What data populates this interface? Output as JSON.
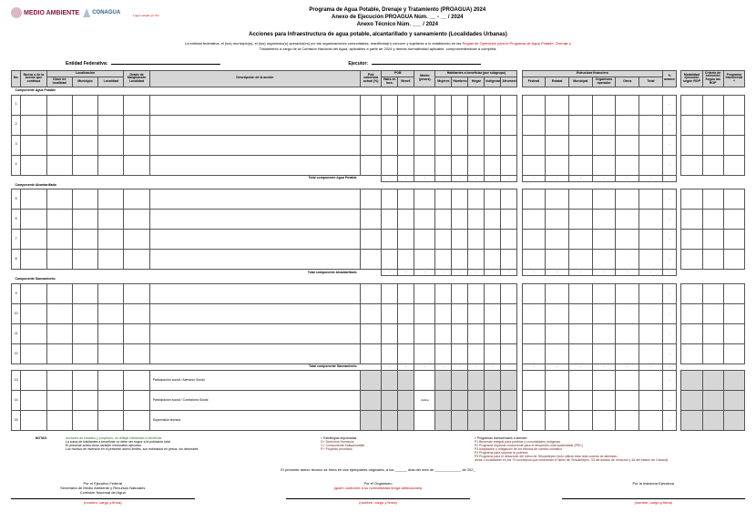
{
  "header": {
    "logo_ma": "MEDIO AMBIENTE",
    "logo_conagua": "CONAGUA",
    "logo_note": "Logos estado y/o OO",
    "title1": "Programa de Agua Potable, Drenaje y Tratamiento (PROAGUA) 2024",
    "title2": "Anexo de Ejecución PROAGUA Núm. __ - __ / 2024",
    "title3": "Anexo Técnico Núm. ___ / 2024",
    "subtitle": "Acciones para Infraestructura de agua potable, alcantarillado y saneamiento (Localidades Urbanas)",
    "legal_pre": "La entidad federativa, el (los) municipio(s), el (los) organismo(s) operador(es) y/o las organizaciones comunitarias, manifiesta(n) conocer y sujetarse a lo establecido en las ",
    "legal_red": "Reglas de Operación para el Programa de Agua Potable, Drenaje y",
    "legal_post": "Tratamiento a cargo de la Comisión Nacional del Agua, aplicables a partir de 2024 y demás normatividad aplicable, comprometiéndose a cumplirla."
  },
  "form": {
    "entidad_label": "Entidad Federativa:",
    "ejecutor_label": "Ejecutor:"
  },
  "table_headers": {
    "no": "No.",
    "nueva": "Nueva o de la acción que continua",
    "localizacion": "Localización",
    "clave_loc": "Clave de localidad",
    "municipio": "Municipio",
    "localidad": "Localidad",
    "grado": "Grado de Marginación Localidad",
    "descripcion": "Descripción de la acción",
    "pob_cobertura": "Pob cobertura actual (%)",
    "pob_group": "POB",
    "habs": "Habs en locs.",
    "benef": "Benef.",
    "monto": "Monto (pesos)",
    "habitantes": "Habitantes a beneficiar (por subgrupo)",
    "mujeres": "Mujeres",
    "hombres": "Hombres",
    "hogar": "Hogar",
    "indigena": "Indígenas",
    "afromex": "Afromexicanos",
    "inversion": "Estructura financiera",
    "federal": "Federal",
    "estatal": "Estatal",
    "municipal": "Municipal",
    "organismo": "Organismo operador",
    "otros": "Otros",
    "total": "Total",
    "porc_avance": "% avance",
    "modalidad": "Modalidad ejecución según ROP",
    "criterio": "Criterio de selección Según las ROP",
    "programa": "Programa transversal ¹⁾"
  },
  "components": {
    "agua": "Componente Agua Potable",
    "alcant": "Componente Alcantarillado",
    "saneam": "Componente Saneamiento",
    "total_agua": "Total componente Agua Potable",
    "total_alcant": "Total componente Alcantarillado",
    "total_saneam": "Total componente Saneamiento",
    "row_part_social": "Participación social / Atención Social",
    "row_contraloria": "Participación social / Contraloría Social",
    "row_supervision": "Supervisión técnica",
    "aplica": "Aplica"
  },
  "row_nums": [
    "1",
    "2",
    "3",
    "4",
    "5",
    "6",
    "7",
    "8",
    "9",
    "10",
    "11",
    "12",
    "13",
    "14",
    "15"
  ],
  "footer": {
    "notas_label": "NOTAS:",
    "nota1": "Acciones de estudios y proyectos, no reflejar habitantes a beneficiar",
    "nota2": "La suma de habitantes a beneficiar no debe ser mayor a la población total",
    "nota3": "El presente anexo tiene carácter informativo ejecutivo",
    "nota4": "Los montos de inversión en el presente anexo límites, son estimados en pesos, sin decimales",
    "col2_head": "¹⁾ Estrategias impulsadas",
    "col2_a": "D¹⁾  Derechos Humanos",
    "col2_b": "C¹⁾  Componente Indispensable",
    "col2_c": "P¹⁾  Proyecto prioritario",
    "col3_head": "¹⁾ Programas transversales a atender:",
    "col3_1": "P1   Bienestar integral para pueblos y comunidades indígenas",
    "col3_2": "P2   Programa especial concurrente para el desarrollo rural sustentable (PEC)",
    "col3_3": "P3   Adaptación y mitigación de los efectos de cambio climático",
    "col3_4": "P4   Programa para superar la pobreza",
    "col3_5": "P5   Programa para el desarrollo del Istmo de Tehuantepec (solo utilizar esta nota cuando se atiendan...",
    "col3_6": "       obras o localidades en los 79 municipios que conforman el Istmo de Tehuantepec, 33 del estado de Veracruz y 46 del estado de Oaxaca)",
    "date_line": "El presente anexo técnico se firma en dos ejemplares originales, a los ______ días del mes de _____________ de 202_",
    "sig1_a": "Por el Ejecutivo Federal",
    "sig1_b": "Secretaría de Medio Ambiente y Recursos Naturales",
    "sig1_c": "Comisión Nacional del Agua",
    "sig2_a": "Por el Organismo",
    "sig2_b": "(quien conforme a su normatividad tenga atribuciones)",
    "sig3_a": "Por la Instancia Ejecutora",
    "sign_line": "(nombre, cargo y firma)"
  }
}
